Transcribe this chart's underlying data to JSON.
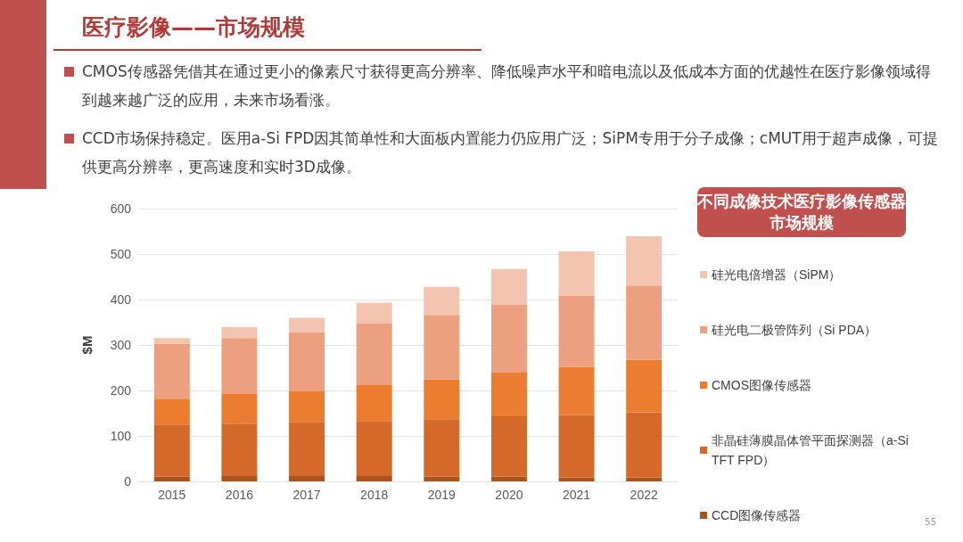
{
  "chart_data": {
    "type": "bar",
    "title": "医疗影像——市场规模",
    "subtitle": "不同成像技术医疗影像传感器市场规模",
    "annotations": [
      "CMOS传感器凭借其在通过更小的像素尺寸获得更高分辨率、降低噪声水平和暗电流以及低成本方面的优越性在医疗影像领域得到越来越广泛的应用，未来市场看涨。",
      "CCD市场保持稳定。医用a-Si FPD因其简单性和大面板内置能力仍应用广泛；SiPM专用于分子成像；cMUT用于超声成像，可提供更高分辨率，更高速度和实时3D成像。",
      "55"
    ],
    "ylabel": "$M",
    "categories": [
      "2015",
      "2016",
      "2017",
      "2018",
      "2019",
      "2020",
      "2021",
      "2022"
    ],
    "stacked": true,
    "ylim": [
      0,
      600
    ],
    "yticks": [
      0,
      100,
      200,
      300,
      400,
      500,
      600
    ],
    "grid": "y",
    "legend": "right",
    "series": [
      {
        "name": "CCD图像传感器",
        "color": "#a9531f",
        "values": [
          11,
          12,
          12,
          12,
          11,
          11,
          9,
          9
        ]
      },
      {
        "name": "非晶硅薄膜晶体管平面探测器（a-Si TFT FPD）",
        "color": "#d4692a",
        "values": [
          114,
          115,
          119,
          121,
          126,
          132,
          137,
          143
        ]
      },
      {
        "name": "CMOS图像传感器",
        "color": "#ec7c30",
        "values": [
          57,
          65,
          67,
          79,
          87,
          96,
          106,
          115
        ]
      },
      {
        "name": "硅光电二极管阵列（Si PDA）",
        "color": "#eda07f",
        "values": [
          121,
          123,
          130,
          135,
          142,
          149,
          156,
          164
        ]
      },
      {
        "name": "硅光电倍增器（SiPM）",
        "color": "#f3c4b0",
        "values": [
          12,
          24,
          32,
          46,
          62,
          79,
          98,
          108
        ]
      }
    ]
  }
}
